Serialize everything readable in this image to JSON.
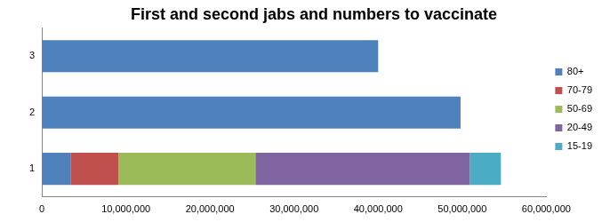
{
  "chart_data": {
    "type": "bar",
    "orientation": "horizontal",
    "stacked": true,
    "title": "First and second jabs and numbers to vaccinate",
    "categories": [
      "1",
      "2",
      "3"
    ],
    "series": [
      {
        "name": "80+",
        "color": "#4f81bd",
        "values": [
          3400000,
          49800000,
          40000000
        ]
      },
      {
        "name": "70-79",
        "color": "#c0504d",
        "values": [
          5700000,
          null,
          null
        ]
      },
      {
        "name": "50-69",
        "color": "#9bbb59",
        "values": [
          16300000,
          null,
          null
        ]
      },
      {
        "name": "20-49",
        "color": "#8064a2",
        "values": [
          25500000,
          null,
          null
        ]
      },
      {
        "name": "15-19",
        "color": "#4bacc6",
        "values": [
          3700000,
          null,
          null
        ]
      }
    ],
    "xlim": [
      0,
      60000000
    ],
    "xticks": [
      0,
      {
        "value": 10000000,
        "label": "10,000,000"
      },
      {
        "value": 20000000,
        "label": "20,000,000"
      },
      {
        "value": 30000000,
        "label": "30,000,000"
      },
      {
        "value": 40000000,
        "label": "40,000,000"
      },
      {
        "value": 50000000,
        "label": "50,000,000"
      },
      {
        "value": 60000000,
        "label": "60,000,000"
      }
    ],
    "grid": false,
    "legend": "right"
  }
}
